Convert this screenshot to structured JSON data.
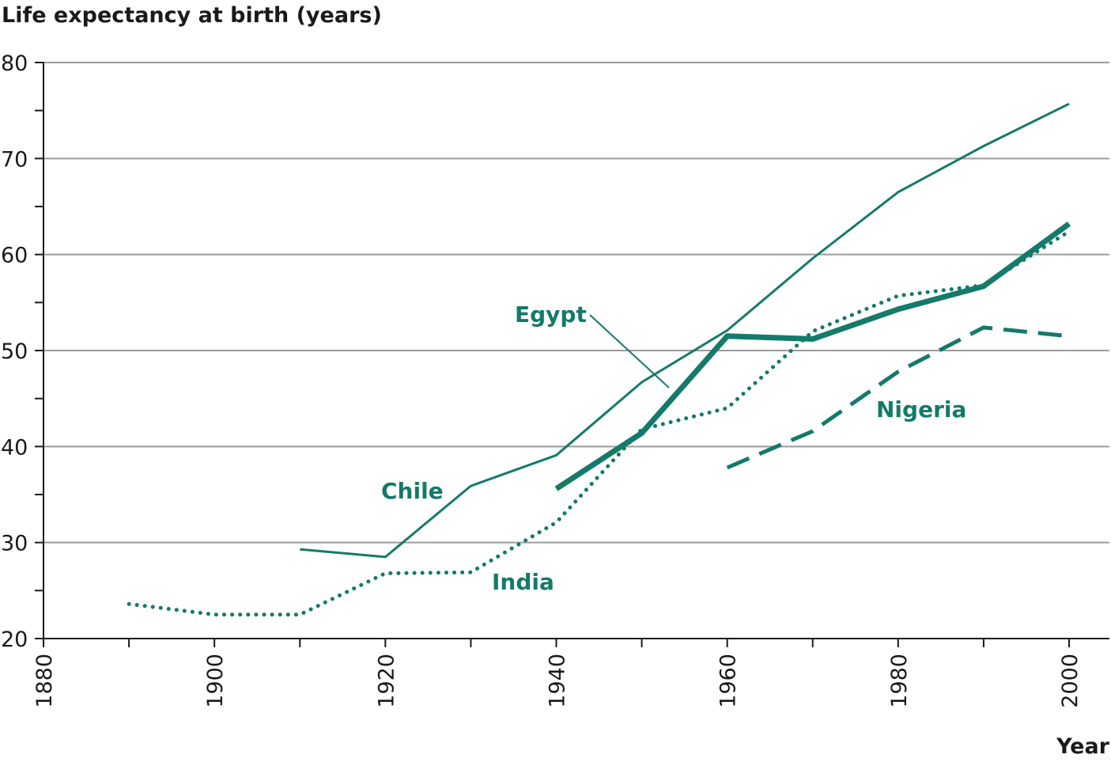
{
  "chart_data": {
    "type": "line",
    "title": "",
    "ylabel": "Life expectancy at birth (years)",
    "xlabel": "Year",
    "xlim": [
      1880,
      2000
    ],
    "ylim": [
      20,
      80
    ],
    "x_ticks": [
      1880,
      1900,
      1920,
      1940,
      1960,
      1980,
      2000
    ],
    "y_ticks": [
      20,
      30,
      40,
      50,
      60,
      70,
      80
    ],
    "grid": true,
    "legend": "inline labels",
    "color": "#147a6a",
    "series": [
      {
        "name": "Chile",
        "style": "solid-thin",
        "x": [
          1910,
          1920,
          1930,
          1940,
          1950,
          1960,
          1970,
          1980,
          1990,
          2000
        ],
        "y": [
          29.3,
          28.5,
          35.9,
          39.1,
          46.7,
          52.1,
          59.6,
          66.5,
          71.3,
          75.7
        ]
      },
      {
        "name": "India",
        "style": "dotted",
        "x": [
          1890,
          1900,
          1910,
          1920,
          1930,
          1940,
          1950,
          1960,
          1970,
          1980,
          1990,
          2000
        ],
        "y": [
          23.6,
          22.5,
          22.5,
          26.8,
          26.9,
          32.1,
          41.8,
          44.0,
          52.0,
          55.7,
          56.8,
          62.4
        ]
      },
      {
        "name": "Egypt",
        "style": "solid-thick",
        "x": [
          1940,
          1950,
          1960,
          1970,
          1980,
          1990,
          2000
        ],
        "y": [
          35.6,
          41.4,
          51.5,
          51.2,
          54.3,
          56.7,
          63.2
        ]
      },
      {
        "name": "Nigeria",
        "style": "dashed",
        "x": [
          1960,
          1970,
          1980,
          1990,
          2000
        ],
        "y": [
          37.8,
          41.6,
          47.8,
          52.4,
          51.5
        ]
      }
    ]
  }
}
